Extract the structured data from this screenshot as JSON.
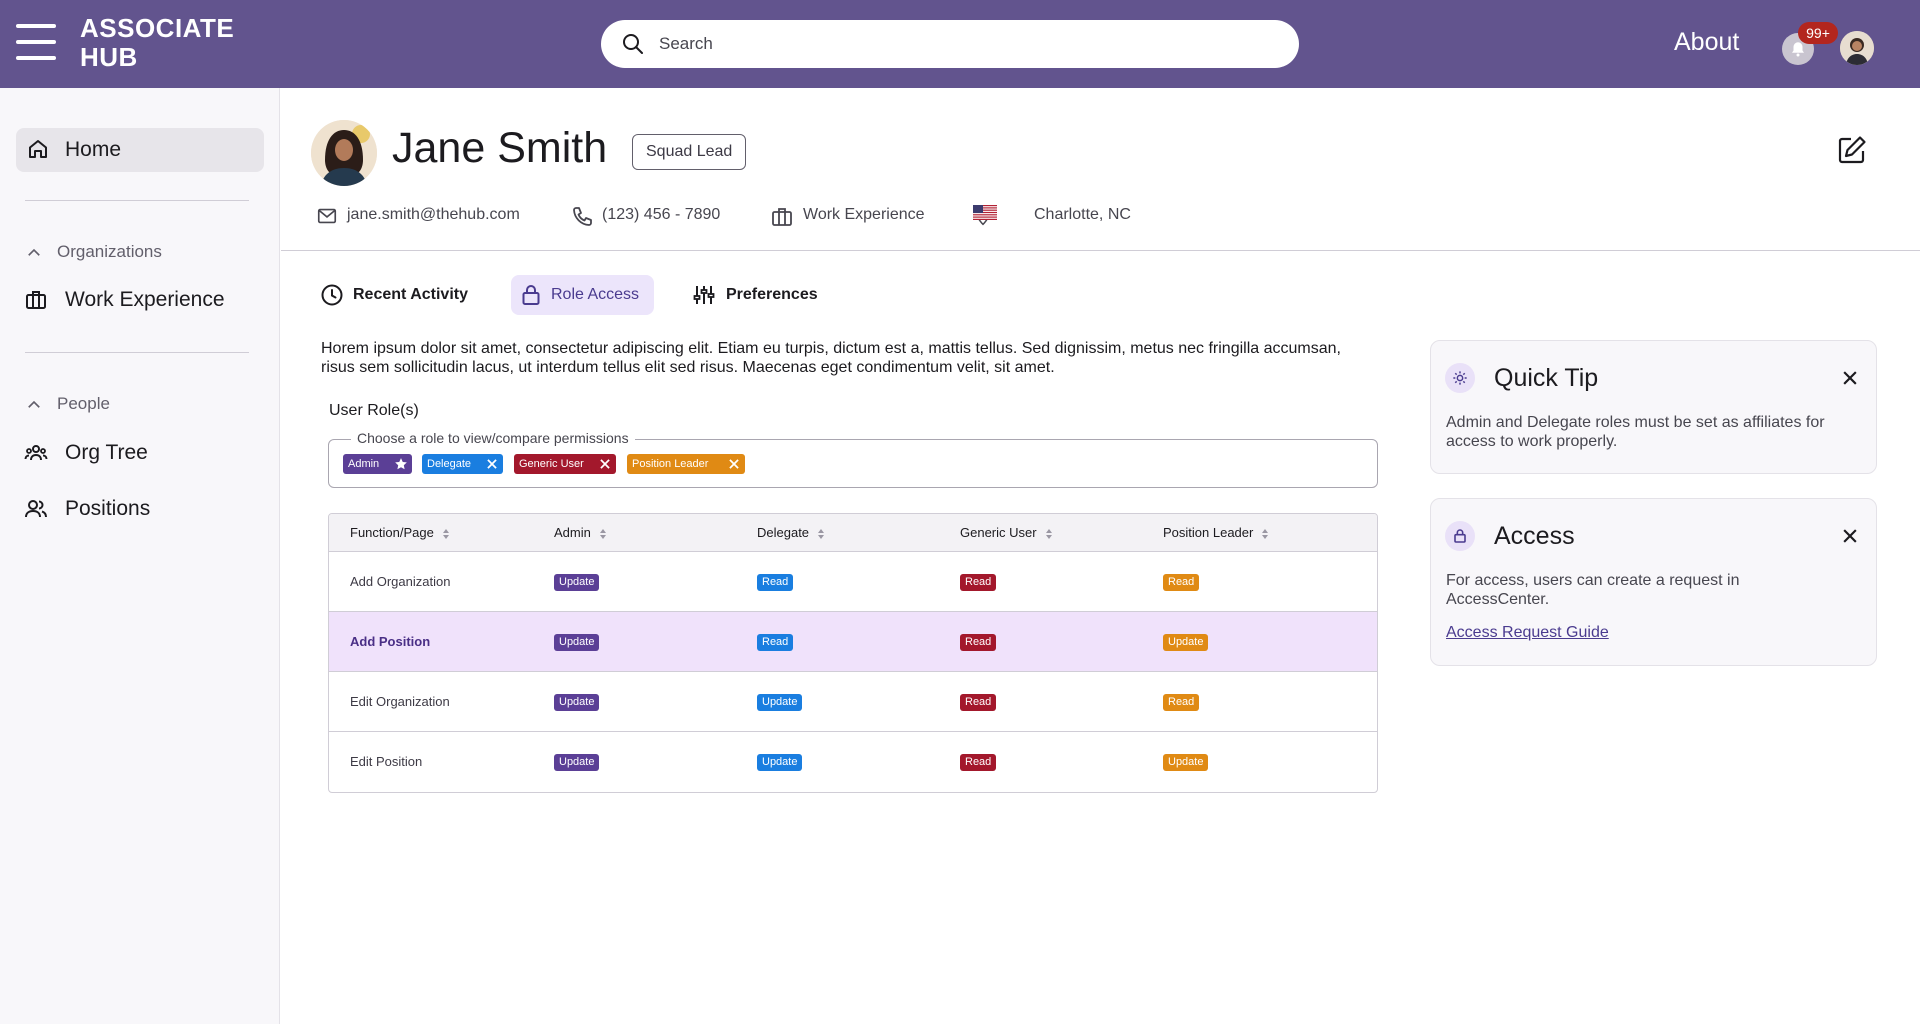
{
  "header": {
    "brand_line1": "ASSOCIATE",
    "brand_line2": "HUB",
    "search_placeholder": "Search",
    "about_label": "About",
    "notification_count": "99+"
  },
  "sidebar": {
    "home_label": "Home",
    "sections": [
      {
        "title": "Organizations",
        "items": [
          {
            "label": "Work Experience",
            "icon": "briefcase-icon"
          }
        ]
      },
      {
        "title": "People",
        "items": [
          {
            "label": "Org Tree",
            "icon": "group-icon"
          },
          {
            "label": "Positions",
            "icon": "people-icon"
          }
        ]
      }
    ]
  },
  "profile": {
    "name": "Jane Smith",
    "role": "Squad Lead",
    "email": "jane.smith@thehub.com",
    "phone": "(123) 456 - 7890",
    "work": "Work Experience",
    "location": "Charlotte, NC"
  },
  "tabs": [
    {
      "label": "Recent Activity",
      "icon": "clock-icon",
      "active": false
    },
    {
      "label": "Role Access",
      "icon": "lock-icon",
      "active": true
    },
    {
      "label": "Preferences",
      "icon": "sliders-icon",
      "active": false
    }
  ],
  "description": "Horem ipsum dolor sit amet, consectetur adipiscing elit. Etiam eu turpis, dictum est a, mattis tellus. Sed dignissim, metus nec fringilla accumsan, risus sem sollicitudin lacus, ut interdum tellus elit sed risus. Maecenas eget condimentum velit, sit amet.",
  "roles": {
    "label": "User Role(s)",
    "legend": "Choose a role to view/compare permissions",
    "selected": [
      {
        "label": "Admin",
        "color": "#5b3f96",
        "icon": "star-icon"
      },
      {
        "label": "Delegate",
        "color": "#1a7ee0",
        "icon": "close-icon"
      },
      {
        "label": "Generic User",
        "color": "#a3182c",
        "icon": "close-icon"
      },
      {
        "label": "Position Leader",
        "color": "#e08a14",
        "icon": "close-icon"
      }
    ]
  },
  "table": {
    "columns": [
      "Function/Page",
      "Admin",
      "Delegate",
      "Generic User",
      "Position Leader"
    ],
    "rows": [
      {
        "name": "Add Organization",
        "cells": [
          "Update",
          "Read",
          "Read",
          "Read"
        ],
        "highlight": false
      },
      {
        "name": "Add Position",
        "cells": [
          "Update",
          "Read",
          "Read",
          "Update"
        ],
        "highlight": true
      },
      {
        "name": "Edit Organization",
        "cells": [
          "Update",
          "Update",
          "Read",
          "Read"
        ],
        "highlight": false
      },
      {
        "name": "Edit Position",
        "cells": [
          "Update",
          "Update",
          "Read",
          "Update"
        ],
        "highlight": false
      }
    ]
  },
  "cards": {
    "tip": {
      "title": "Quick Tip",
      "body": "Admin and Delegate roles must be set as affiliates for access to work properly."
    },
    "access": {
      "title": "Access",
      "body": "For access, users can create a request in AccessCenter.",
      "link": "Access Request Guide"
    }
  },
  "colors": {
    "header": "#62548e",
    "accent": "#4a3b8f",
    "admin": "#5b3f96",
    "delegate": "#1a7ee0",
    "generic_user": "#a3182c",
    "position_leader": "#e08a14"
  }
}
